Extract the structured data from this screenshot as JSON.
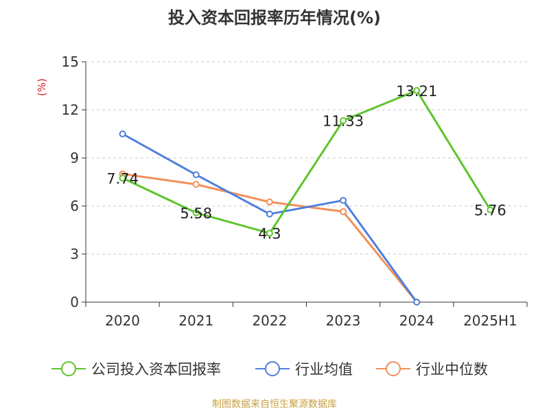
{
  "title": "投入资本回报率历年情况(%)",
  "source": "制图数据来自恒生聚源数据库",
  "chart_data": {
    "type": "line",
    "title": "投入资本回报率历年情况(%)",
    "ylabel": "(%)",
    "categories": [
      "2020",
      "2021",
      "2022",
      "2023",
      "2024",
      "2025H1"
    ],
    "ylim": [
      0,
      15
    ],
    "yticks": [
      0,
      3,
      6,
      9,
      12,
      15
    ],
    "grid": true,
    "legend": "bottom",
    "series": [
      {
        "name": "公司投入资本回报率",
        "color": "#5cc52a",
        "values": [
          7.74,
          5.58,
          4.3,
          11.33,
          13.21,
          5.76
        ],
        "labels": [
          "7.74",
          "5.58",
          "4.3",
          "11.33",
          "13.21",
          "5.76"
        ]
      },
      {
        "name": "行业均值",
        "color": "#4f7fdc",
        "values": [
          10.5,
          7.95,
          5.5,
          6.35,
          0,
          null
        ]
      },
      {
        "name": "行业中位数",
        "color": "#f28f5a",
        "values": [
          8.0,
          7.35,
          6.25,
          5.65,
          0,
          null
        ]
      }
    ]
  }
}
